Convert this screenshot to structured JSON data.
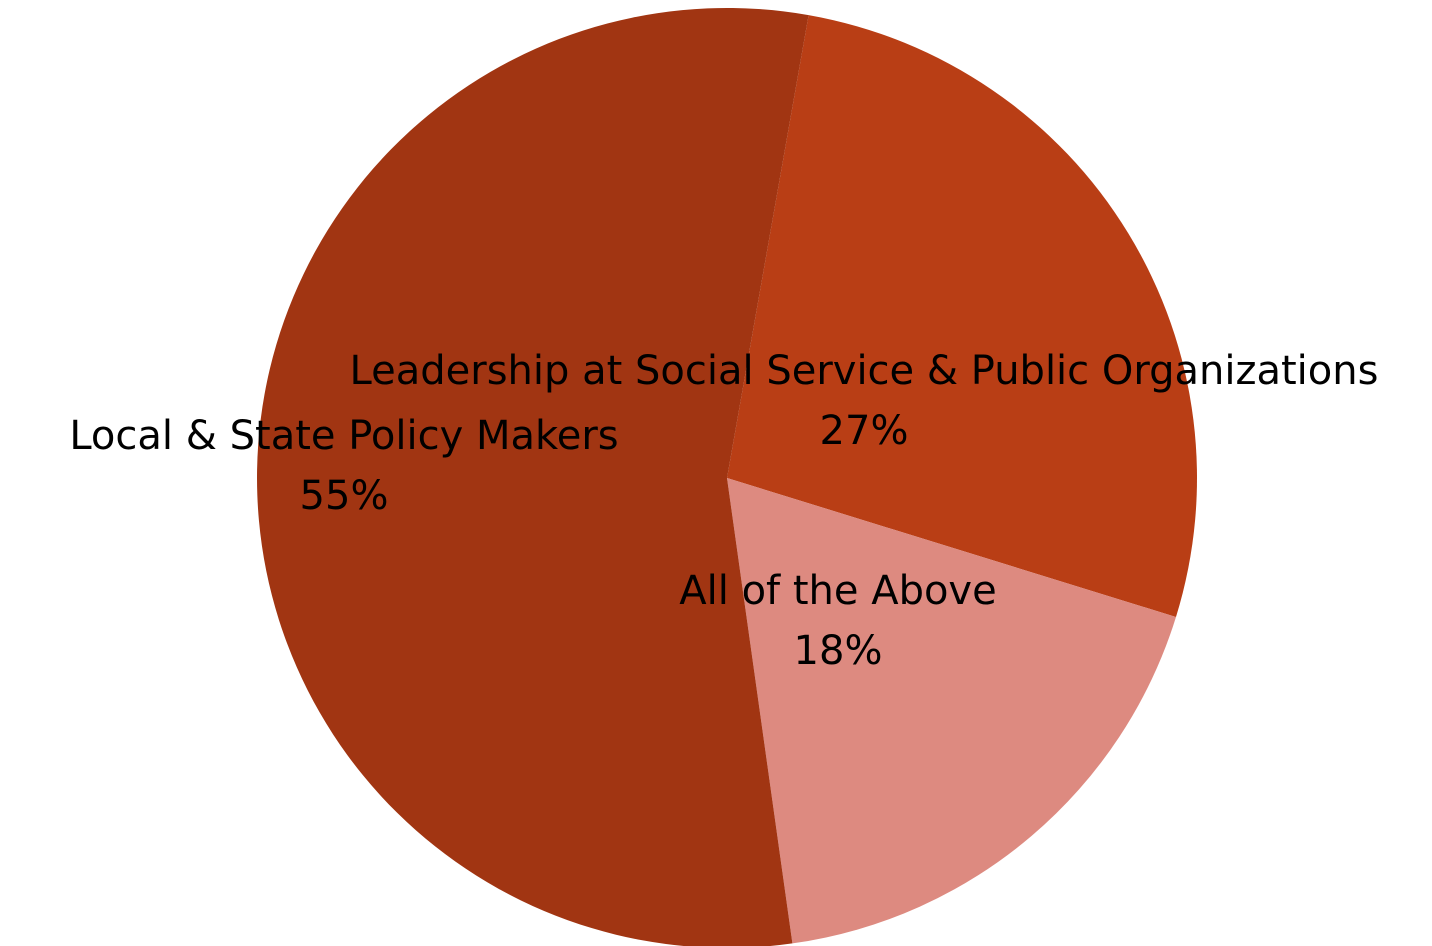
{
  "chart_data": {
    "type": "pie",
    "title": "",
    "slices": [
      {
        "label": "Leadership at Social Service & Public Organizations",
        "value": 27,
        "display": "27%",
        "color": "#b93e15"
      },
      {
        "label": "All of the Above",
        "value": 18,
        "display": "18%",
        "color": "#dd8a80"
      },
      {
        "label": "Local & State Policy Makers",
        "value": 55,
        "display": "55%",
        "color": "#a13512"
      }
    ],
    "start_angle_deg": 10,
    "direction": "clockwise",
    "legend": "none",
    "data_labels": "category name and percentage"
  }
}
